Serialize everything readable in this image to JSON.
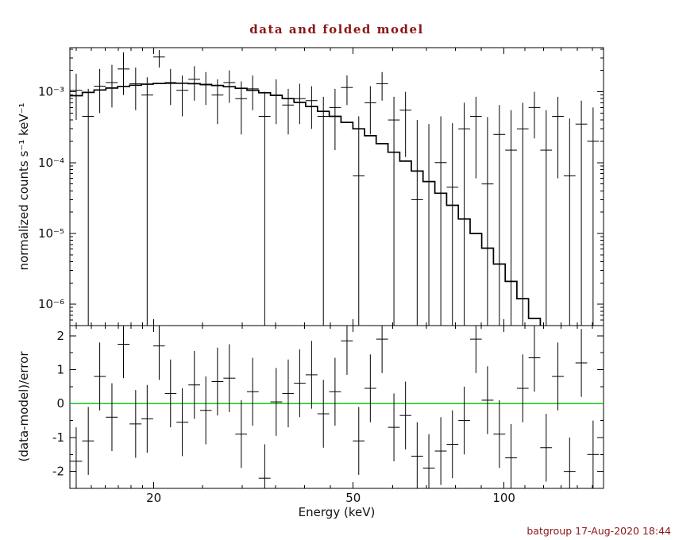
{
  "title": "data and folded model",
  "timestamp": "batgroup 17-Aug-2020 18:44",
  "colors": {
    "frame": "#000000",
    "data": "#000000",
    "model": "#000000",
    "zero_line": "#00c000",
    "title_text": "#8b1717",
    "timestamp_text": "#8b1717",
    "axis_text": "#111111"
  },
  "chart_data": [
    {
      "type": "line",
      "panel": "spectrum",
      "title": "data and folded model",
      "xlabel": "Energy (keV)",
      "ylabel": "normalized counts s⁻¹ keV⁻¹",
      "xscale": "log",
      "yscale": "log",
      "xlim": [
        13.6,
        158
      ],
      "ylim": [
        5e-07,
        0.0042
      ],
      "grid": false,
      "x_ticks_major": {
        "values": [
          20,
          50,
          100
        ],
        "labels": [
          "20",
          "50",
          "100"
        ]
      },
      "x_ticks_minor": [
        14,
        15,
        16,
        17,
        18,
        19,
        25,
        30,
        35,
        40,
        45,
        60,
        70,
        80,
        90,
        110,
        120,
        130,
        140,
        150
      ],
      "y_ticks_major": {
        "values": [
          1e-06,
          1e-05,
          0.0001,
          0.001
        ],
        "labels": [
          "10⁻⁶",
          "10⁻⁵",
          "10⁻⁴",
          "10⁻³"
        ]
      },
      "series": [
        {
          "name": "folded model",
          "style": "step-histogram",
          "x": [
            14.0,
            14.8,
            15.6,
            16.5,
            17.4,
            18.4,
            19.4,
            20.5,
            21.6,
            22.8,
            24.1,
            25.4,
            26.8,
            28.3,
            29.9,
            31.5,
            33.3,
            35.1,
            37.1,
            39.1,
            41.3,
            43.6,
            46.0,
            48.6,
            51.3,
            54.1,
            57.1,
            60.3,
            63.6,
            67.1,
            70.8,
            74.8,
            78.9,
            83.3,
            87.9,
            92.7,
            97.9,
            103.3,
            109.0,
            115.0,
            121.4,
            128.1,
            135.2,
            142.7,
            150.6
          ],
          "y": [
            0.00088,
            0.00098,
            0.00106,
            0.00113,
            0.00119,
            0.00124,
            0.00128,
            0.00131,
            0.00132,
            0.00132,
            0.0013,
            0.00127,
            0.00123,
            0.00118,
            0.00112,
            0.00105,
            0.00097,
            0.00089,
            0.0008,
            0.00071,
            0.00062,
            0.00053,
            0.00045,
            0.00037,
            0.0003,
            0.00024,
            0.000185,
            0.00014,
            0.000105,
            7.6e-05,
            5.4e-05,
            3.7e-05,
            2.5e-05,
            1.6e-05,
            1e-05,
            6.2e-06,
            3.7e-06,
            2.1e-06,
            1.2e-06,
            6.3e-07,
            3.2e-07,
            1.6e-07,
            8e-08,
            4e-08,
            2e-08
          ]
        },
        {
          "name": "data",
          "style": "error-cross",
          "x": [
            14.0,
            14.8,
            15.6,
            16.5,
            17.4,
            18.4,
            19.4,
            20.5,
            21.6,
            22.8,
            24.1,
            25.4,
            26.8,
            28.3,
            29.9,
            31.5,
            33.3,
            35.1,
            37.1,
            39.1,
            41.3,
            43.6,
            46.0,
            48.6,
            51.3,
            54.1,
            57.1,
            60.3,
            63.6,
            67.1,
            70.8,
            74.8,
            78.9,
            83.3,
            87.9,
            92.7,
            97.9,
            103.3,
            109.0,
            115.0,
            121.4,
            128.1,
            135.2,
            142.7,
            150.6
          ],
          "y": [
            0.00105,
            0.00045,
            0.0012,
            0.00135,
            0.0021,
            0.0013,
            0.0009,
            0.0031,
            0.00135,
            0.00105,
            0.0015,
            0.00125,
            0.0009,
            0.00135,
            0.0008,
            0.0011,
            0.00045,
            0.0009,
            0.00065,
            0.0008,
            0.00075,
            0.00045,
            0.0006,
            0.00115,
            6.5e-05,
            0.0007,
            0.0013,
            0.0004,
            0.00055,
            3e-05,
            null,
            0.0001,
            4.5e-05,
            0.0003,
            0.00045,
            5e-05,
            0.00025,
            0.00015,
            0.0003,
            0.0006,
            0.00015,
            0.00045,
            6.5e-05,
            0.00035,
            0.0002
          ],
          "y_hi": [
            0.0018,
            0.0011,
            0.0021,
            0.0024,
            0.0036,
            0.0022,
            0.0016,
            0.0039,
            0.0021,
            0.0017,
            0.0023,
            0.0019,
            0.0015,
            0.002,
            0.0014,
            0.0017,
            0.001,
            0.0015,
            0.0011,
            0.0013,
            0.0012,
            0.00085,
            0.0011,
            0.0017,
            0.00045,
            0.0012,
            0.0019,
            0.00085,
            0.001,
            0.0004,
            0.00035,
            0.00045,
            0.00036,
            0.0007,
            0.00085,
            0.00044,
            0.00065,
            0.00055,
            0.0007,
            0.001,
            0.00055,
            0.00085,
            0.00042,
            0.00075,
            0.0006
          ],
          "y_lo": [
            0.0004,
            null,
            0.0005,
            0.0006,
            0.0009,
            0.00055,
            null,
            0.0022,
            0.00065,
            0.00045,
            0.00075,
            0.00065,
            0.00035,
            0.0007,
            0.00025,
            0.00055,
            null,
            0.00035,
            0.00025,
            0.00035,
            0.0003,
            null,
            0.00015,
            0.00065,
            null,
            0.00025,
            0.00075,
            null,
            0.00012,
            null,
            null,
            null,
            null,
            null,
            6e-05,
            null,
            null,
            null,
            null,
            0.00022,
            null,
            6e-05,
            null,
            null,
            null
          ]
        }
      ]
    },
    {
      "type": "scatter",
      "panel": "residuals",
      "xlabel": "Energy (keV)",
      "ylabel": "(data-model)/error",
      "xscale": "log",
      "yscale": "linear",
      "xlim": [
        13.6,
        158
      ],
      "ylim": [
        -2.5,
        2.3
      ],
      "grid": false,
      "zero_line_value": 0,
      "y_ticks_major": {
        "values": [
          -2,
          -1,
          0,
          1,
          2
        ],
        "labels": [
          "-2",
          "-1",
          "0",
          "1",
          "2"
        ]
      },
      "y_ticks_minor": [
        -1.5,
        -0.5,
        0.5,
        1.5
      ],
      "series": [
        {
          "name": "residuals",
          "style": "error-cross",
          "err": 1,
          "x": [
            14.0,
            14.8,
            15.6,
            16.5,
            17.4,
            18.4,
            19.4,
            20.5,
            21.6,
            22.8,
            24.1,
            25.4,
            26.8,
            28.3,
            29.9,
            31.5,
            33.3,
            35.1,
            37.1,
            39.1,
            41.3,
            43.6,
            46.0,
            48.6,
            51.3,
            54.1,
            57.1,
            60.3,
            63.6,
            67.1,
            70.8,
            74.8,
            78.9,
            83.3,
            87.9,
            92.7,
            97.9,
            103.3,
            109.0,
            115.0,
            121.4,
            128.1,
            135.2,
            142.7,
            150.6
          ],
          "y": [
            -1.7,
            -1.1,
            0.8,
            -0.4,
            1.75,
            -0.6,
            -0.45,
            1.7,
            0.3,
            -0.55,
            0.55,
            -0.2,
            0.65,
            0.75,
            -0.9,
            0.35,
            -2.2,
            0.05,
            0.3,
            0.6,
            0.85,
            -0.3,
            0.35,
            1.85,
            -1.1,
            0.45,
            1.9,
            -0.7,
            -0.35,
            -1.55,
            -1.9,
            -1.4,
            -1.2,
            -0.5,
            1.9,
            0.1,
            -0.9,
            -1.6,
            0.45,
            1.35,
            -1.3,
            0.8,
            -2.0,
            1.2,
            -1.5
          ]
        }
      ]
    }
  ]
}
